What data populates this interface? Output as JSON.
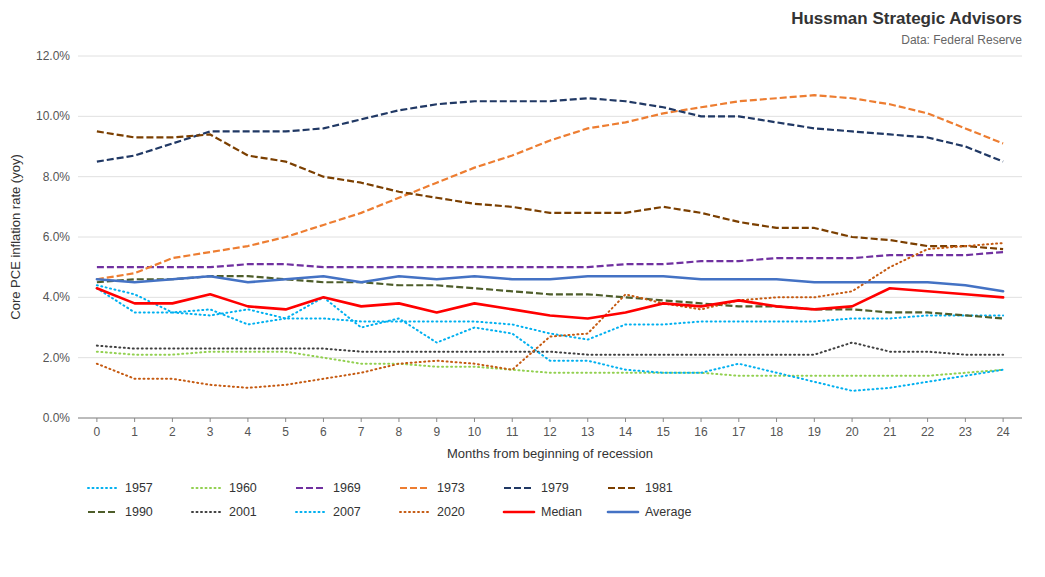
{
  "chart_data": {
    "type": "line",
    "title": "Hussman Strategic Advisors",
    "subtitle": "Data: Federal Reserve",
    "xlabel": "Months from beginning of recession",
    "ylabel": "Core PCE inflation rate (yoy)",
    "x": [
      0,
      1,
      2,
      3,
      4,
      5,
      6,
      7,
      8,
      9,
      10,
      11,
      12,
      13,
      14,
      15,
      16,
      17,
      18,
      19,
      20,
      21,
      22,
      23,
      24
    ],
    "series": [
      {
        "name": "1957",
        "color": "#00B0F0",
        "line_style": "dotted",
        "values": [
          4.4,
          4.1,
          3.5,
          3.4,
          3.6,
          3.3,
          3.3,
          3.2,
          3.2,
          3.2,
          3.2,
          3.1,
          2.8,
          2.6,
          3.1,
          3.1,
          3.2,
          3.2,
          3.2,
          3.2,
          3.3,
          3.3,
          3.4,
          3.4,
          3.4
        ]
      },
      {
        "name": "1960",
        "color": "#92D050",
        "line_style": "dotted",
        "values": [
          2.2,
          2.1,
          2.1,
          2.2,
          2.2,
          2.2,
          2.0,
          1.8,
          1.8,
          1.7,
          1.7,
          1.6,
          1.5,
          1.5,
          1.5,
          1.5,
          1.5,
          1.4,
          1.4,
          1.4,
          1.4,
          1.4,
          1.4,
          1.5,
          1.6
        ]
      },
      {
        "name": "1969",
        "color": "#7030A0",
        "line_style": "dashed",
        "values": [
          5.0,
          5.0,
          5.0,
          5.0,
          5.1,
          5.1,
          5.0,
          5.0,
          5.0,
          5.0,
          5.0,
          5.0,
          5.0,
          5.0,
          5.1,
          5.1,
          5.2,
          5.2,
          5.3,
          5.3,
          5.3,
          5.4,
          5.4,
          5.4,
          5.5
        ]
      },
      {
        "name": "1973",
        "color": "#ED7D31",
        "line_style": "dashed",
        "values": [
          4.6,
          4.8,
          5.3,
          5.5,
          5.7,
          6.0,
          6.4,
          6.8,
          7.3,
          7.8,
          8.3,
          8.7,
          9.2,
          9.6,
          9.8,
          10.1,
          10.3,
          10.5,
          10.6,
          10.7,
          10.6,
          10.4,
          10.1,
          9.6,
          9.1
        ]
      },
      {
        "name": "1979",
        "color": "#203864",
        "line_style": "dashed",
        "values": [
          8.5,
          8.7,
          9.1,
          9.5,
          9.5,
          9.5,
          9.6,
          9.9,
          10.2,
          10.4,
          10.5,
          10.5,
          10.5,
          10.6,
          10.5,
          10.3,
          10.0,
          10.0,
          9.8,
          9.6,
          9.5,
          9.4,
          9.3,
          9.0,
          8.5
        ]
      },
      {
        "name": "1981",
        "color": "#7B3F00",
        "line_style": "dashed",
        "values": [
          9.5,
          9.3,
          9.3,
          9.4,
          8.7,
          8.5,
          8.0,
          7.8,
          7.5,
          7.3,
          7.1,
          7.0,
          6.8,
          6.8,
          6.8,
          7.0,
          6.8,
          6.5,
          6.3,
          6.3,
          6.0,
          5.9,
          5.7,
          5.7,
          5.6
        ]
      },
      {
        "name": "1990",
        "color": "#4E5D2A",
        "line_style": "dashed",
        "values": [
          4.5,
          4.6,
          4.6,
          4.7,
          4.7,
          4.6,
          4.5,
          4.5,
          4.4,
          4.4,
          4.3,
          4.2,
          4.1,
          4.1,
          4.0,
          3.9,
          3.8,
          3.7,
          3.7,
          3.6,
          3.6,
          3.5,
          3.5,
          3.4,
          3.3
        ]
      },
      {
        "name": "2001",
        "color": "#404040",
        "line_style": "dotted",
        "values": [
          2.4,
          2.3,
          2.3,
          2.3,
          2.3,
          2.3,
          2.3,
          2.2,
          2.2,
          2.2,
          2.2,
          2.2,
          2.2,
          2.1,
          2.1,
          2.1,
          2.1,
          2.1,
          2.1,
          2.1,
          2.5,
          2.2,
          2.2,
          2.1,
          2.1
        ]
      },
      {
        "name": "2007",
        "color": "#00B0F0",
        "line_style": "dotted",
        "values": [
          4.3,
          3.5,
          3.5,
          3.6,
          3.1,
          3.3,
          4.0,
          3.0,
          3.3,
          2.5,
          3.0,
          2.8,
          1.9,
          1.9,
          1.6,
          1.5,
          1.5,
          1.8,
          1.5,
          1.2,
          0.9,
          1.0,
          1.2,
          1.4,
          1.6
        ]
      },
      {
        "name": "2020",
        "color": "#C55A11",
        "line_style": "dotted",
        "values": [
          1.8,
          1.3,
          1.3,
          1.1,
          1.0,
          1.1,
          1.3,
          1.5,
          1.8,
          1.9,
          1.8,
          1.6,
          2.7,
          2.8,
          4.1,
          3.8,
          3.6,
          3.9,
          4.0,
          4.0,
          4.2,
          5.0,
          5.6,
          5.7,
          5.8
        ]
      },
      {
        "name": "Median",
        "color": "#FF0000",
        "line_style": "solid",
        "values": [
          4.3,
          3.8,
          3.8,
          4.1,
          3.7,
          3.6,
          4.0,
          3.7,
          3.8,
          3.5,
          3.8,
          3.6,
          3.4,
          3.3,
          3.5,
          3.8,
          3.7,
          3.9,
          3.7,
          3.6,
          3.7,
          4.3,
          4.2,
          4.1,
          4.0
        ]
      },
      {
        "name": "Average",
        "color": "#4472C4",
        "line_style": "solid",
        "values": [
          4.6,
          4.5,
          4.6,
          4.7,
          4.5,
          4.6,
          4.7,
          4.5,
          4.7,
          4.6,
          4.7,
          4.6,
          4.6,
          4.7,
          4.7,
          4.7,
          4.6,
          4.6,
          4.6,
          4.5,
          4.5,
          4.5,
          4.5,
          4.4,
          4.2
        ]
      }
    ],
    "xlim": [
      -0.5,
      24.5
    ],
    "xticks": [
      0,
      1,
      2,
      3,
      4,
      5,
      6,
      7,
      8,
      9,
      10,
      11,
      12,
      13,
      14,
      15,
      16,
      17,
      18,
      19,
      20,
      21,
      22,
      23,
      24
    ],
    "ylim": [
      0.0,
      12.0
    ],
    "yticks": [
      {
        "value": 0.0,
        "label": "0.0%"
      },
      {
        "value": 2.0,
        "label": "2.0%"
      },
      {
        "value": 4.0,
        "label": "4.0%"
      },
      {
        "value": 6.0,
        "label": "6.0%"
      },
      {
        "value": 8.0,
        "label": "8.0%"
      },
      {
        "value": 10.0,
        "label": "10.0%"
      },
      {
        "value": 12.0,
        "label": "12.0%"
      }
    ],
    "grid": true,
    "legend": "bottom"
  }
}
